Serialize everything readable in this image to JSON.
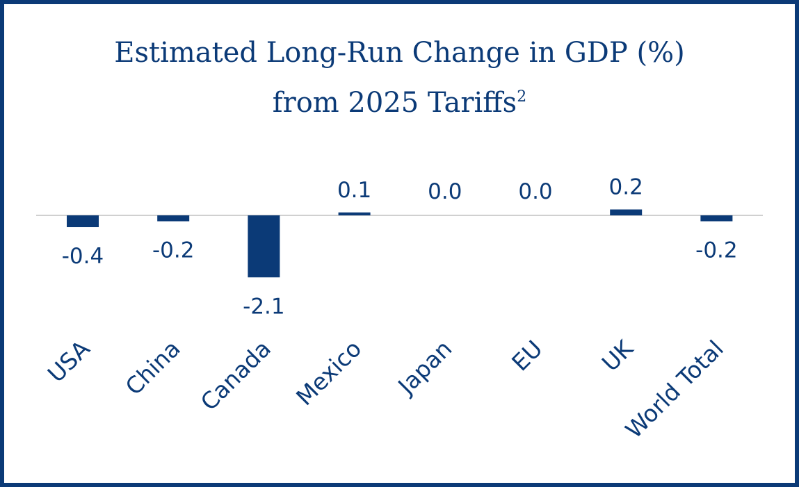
{
  "chart_data": {
    "type": "bar",
    "title_line1": "Estimated Long-Run Change in GDP (%)",
    "title_line2": "from 2025 Tariffs",
    "title_footnote": "2",
    "categories": [
      "USA",
      "China",
      "Canada",
      "Mexico",
      "Japan",
      "EU",
      "UK",
      "World Total"
    ],
    "values": [
      -0.4,
      -0.2,
      -2.1,
      0.1,
      0.0,
      0.0,
      0.2,
      -0.2
    ],
    "value_labels": [
      "-0.4",
      "-0.2",
      "-2.1",
      "0.1",
      "0.0",
      "0.0",
      "0.2",
      "-0.2"
    ],
    "xlabel": "",
    "ylabel": "",
    "grid": false,
    "legend": "none",
    "colors": {
      "bar": "#0b3a77",
      "axis": "#d0d0d0",
      "text": "#0b3a77",
      "border": "#0b3a77"
    }
  }
}
